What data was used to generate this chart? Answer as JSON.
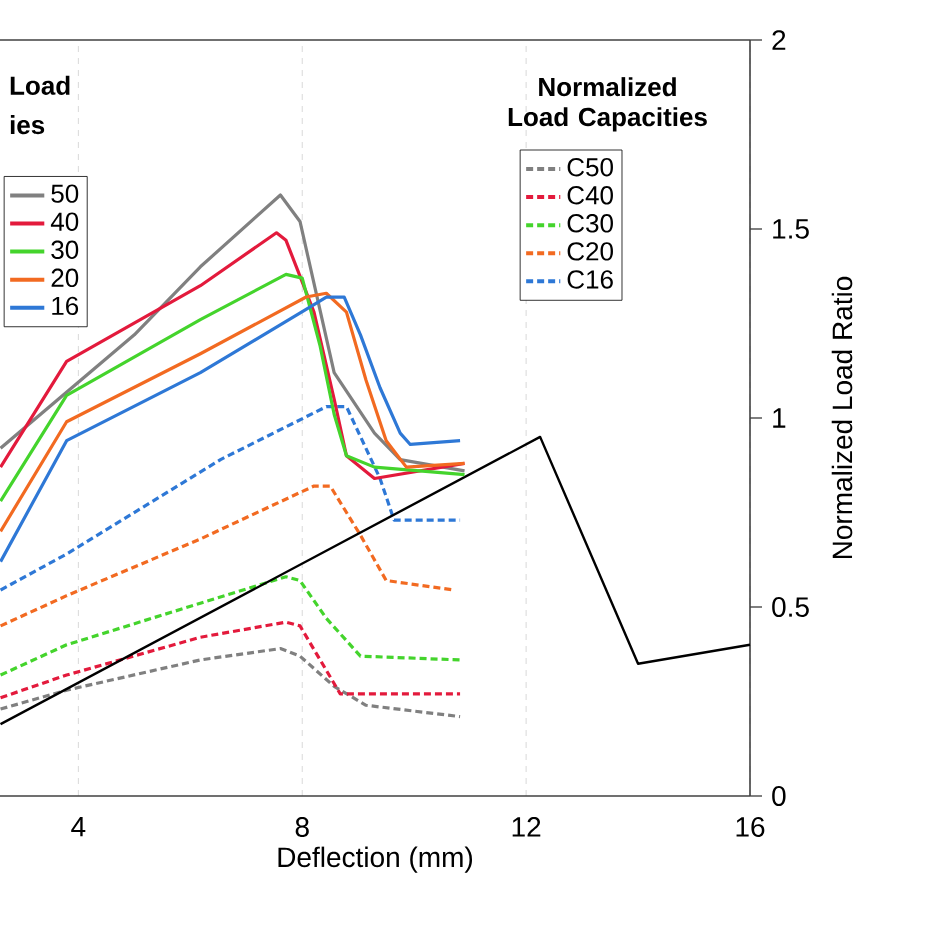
{
  "chart_data": {
    "type": "line",
    "xlabel": "Deflection (mm)",
    "ylabel": "Normalized Load Ratio",
    "legend_title": "Normalized Load Capacities",
    "annotations": [
      "Load",
      "ies"
    ],
    "xlim": [
      2.6,
      16
    ],
    "xticks": [
      4,
      8,
      12,
      16
    ],
    "ylim": [
      0,
      2
    ],
    "yticks": [
      0,
      0.5,
      1,
      1.5,
      2
    ],
    "grid": "x",
    "legend": "top",
    "series": [
      {
        "name": "50",
        "color": "#808080",
        "line_style": "solid",
        "x": [
          2.61,
          5.0,
          6.18,
          7.61,
          7.96,
          8.57,
          9.29,
          9.75,
          10.9
        ],
        "values": [
          0.92,
          1.22,
          1.4,
          1.59,
          1.52,
          1.12,
          0.96,
          0.89,
          0.86
        ]
      },
      {
        "name": "40",
        "color": "#e31a3c",
        "line_style": "solid",
        "x": [
          2.61,
          3.79,
          6.18,
          7.54,
          7.71,
          8.21,
          8.57,
          8.79,
          9.29,
          10.9
        ],
        "values": [
          0.87,
          1.15,
          1.35,
          1.49,
          1.47,
          1.28,
          1.05,
          0.9,
          0.84,
          0.88
        ]
      },
      {
        "name": "30",
        "color": "#44d42c",
        "line_style": "solid",
        "x": [
          2.61,
          3.79,
          6.18,
          7.71,
          8.0,
          8.32,
          8.57,
          8.79,
          9.29,
          10.9
        ],
        "values": [
          0.78,
          1.06,
          1.26,
          1.38,
          1.37,
          1.19,
          1.01,
          0.9,
          0.87,
          0.85
        ]
      },
      {
        "name": "20",
        "color": "#f26a21",
        "line_style": "solid",
        "x": [
          2.61,
          3.79,
          6.18,
          8.07,
          8.43,
          8.79,
          9.14,
          9.5,
          9.86,
          10.9
        ],
        "values": [
          0.7,
          0.99,
          1.17,
          1.32,
          1.33,
          1.28,
          1.1,
          0.94,
          0.87,
          0.88
        ]
      },
      {
        "name": "16",
        "color": "#2e78d6",
        "line_style": "solid",
        "x": [
          2.61,
          3.79,
          6.18,
          8.21,
          8.43,
          8.75,
          9.04,
          9.39,
          9.75,
          9.93,
          10.82
        ],
        "values": [
          0.62,
          0.94,
          1.12,
          1.3,
          1.32,
          1.32,
          1.22,
          1.08,
          0.96,
          0.93,
          0.94
        ]
      },
      {
        "name": "C50",
        "color": "#808080",
        "line_style": "dashed",
        "x": [
          2.61,
          3.79,
          6.18,
          7.61,
          7.96,
          8.57,
          9.14,
          10.82
        ],
        "values": [
          0.23,
          0.28,
          0.36,
          0.39,
          0.37,
          0.29,
          0.24,
          0.21
        ]
      },
      {
        "name": "C40",
        "color": "#e31a3c",
        "line_style": "dashed",
        "x": [
          2.61,
          3.79,
          6.18,
          7.71,
          7.96,
          8.32,
          8.68,
          10.82
        ],
        "values": [
          0.26,
          0.32,
          0.42,
          0.46,
          0.45,
          0.36,
          0.27,
          0.27
        ]
      },
      {
        "name": "C30",
        "color": "#44d42c",
        "line_style": "dashed",
        "x": [
          2.61,
          3.79,
          6.18,
          7.71,
          7.96,
          8.43,
          9.04,
          10.82
        ],
        "values": [
          0.32,
          0.4,
          0.51,
          0.58,
          0.57,
          0.47,
          0.37,
          0.36
        ]
      },
      {
        "name": "C20",
        "color": "#f26a21",
        "line_style": "dashed",
        "x": [
          2.61,
          3.79,
          6.18,
          8.21,
          8.5,
          9.04,
          9.5,
          10.71
        ],
        "values": [
          0.45,
          0.53,
          0.68,
          0.82,
          0.82,
          0.69,
          0.57,
          0.545
        ]
      },
      {
        "name": "C16",
        "color": "#2e78d6",
        "line_style": "dashed",
        "x": [
          2.61,
          3.79,
          6.54,
          8.43,
          8.79,
          9.39,
          9.64,
          10.82
        ],
        "values": [
          0.545,
          0.64,
          0.89,
          1.03,
          1.03,
          0.84,
          0.73,
          0.73
        ]
      },
      {
        "color": "#000000",
        "line_style": "solid",
        "x": [
          2.61,
          12.25,
          14.0,
          16.0
        ],
        "values": [
          0.19,
          0.95,
          0.35,
          0.4
        ]
      }
    ]
  }
}
